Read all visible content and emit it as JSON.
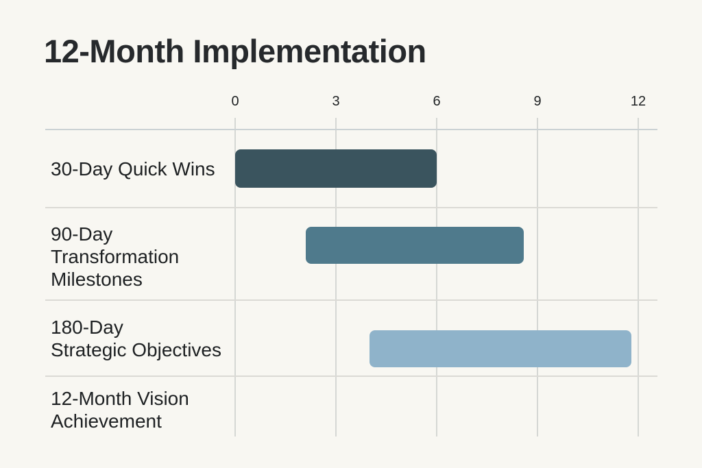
{
  "title": "12-Month Implementation",
  "chart_data": {
    "type": "bar",
    "subtype": "gantt-timeline",
    "title": "12-Month Implementation",
    "xlabel": "",
    "ylabel": "",
    "x_ticks": [
      "0",
      "3",
      "6",
      "9",
      "12"
    ],
    "xlim": [
      0,
      12
    ],
    "grid": true,
    "legend": false,
    "background_color": "#f8f7f2",
    "axis_line_color": "#cbd2d4",
    "grid_line_color": "#d5d7d4",
    "text_color": "#1d2022",
    "rows": [
      {
        "label": "30-Day Quick Wins",
        "label_lines": [
          "30-Day Quick Wins"
        ],
        "start": 0,
        "end": 6,
        "color": "#3a545e"
      },
      {
        "label": "90-Day Transformation Milestones",
        "label_lines": [
          "90-Day",
          "Transformation",
          "Milestones"
        ],
        "start": 2.1,
        "end": 8.6,
        "color": "#4f7a8c"
      },
      {
        "label": "180-Day Strategic Objectives",
        "label_lines": [
          "180-Day",
          "Strategic Objectives"
        ],
        "start": 4,
        "end": 11.8,
        "color": "#8fb3ca"
      },
      {
        "label": "12-Month Vision Achievement",
        "label_lines": [
          "12-Month Vision",
          "Achievement"
        ],
        "start": null,
        "end": null,
        "color": null
      }
    ]
  }
}
